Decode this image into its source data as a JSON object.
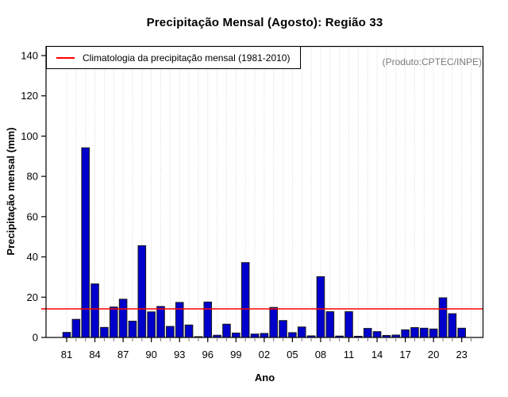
{
  "chart_data": {
    "type": "bar",
    "title": "Precipitação Mensal (Agosto): Região 33",
    "xlabel": "Ano",
    "ylabel": "Precipitação mensal (mm)",
    "watermark": "(Produto:CPTEC/INPE)",
    "ylim": [
      0,
      140
    ],
    "yticks": [
      0,
      20,
      40,
      60,
      80,
      100,
      120,
      140
    ],
    "xtick_labels": [
      "81",
      "84",
      "87",
      "90",
      "93",
      "96",
      "99",
      "02",
      "05",
      "08",
      "11",
      "14",
      "17",
      "20",
      "23"
    ],
    "xtick_step_years": 3,
    "grid": "vertical-dotted",
    "legend_position": "top-left",
    "bar_color": "#0000CD",
    "bar_border_color": "#1a1a1a",
    "grid_color": "#cfcfcf",
    "years": [
      1981,
      1982,
      1983,
      1984,
      1985,
      1986,
      1987,
      1988,
      1989,
      1990,
      1991,
      1992,
      1993,
      1994,
      1995,
      1996,
      1997,
      1998,
      1999,
      2000,
      2001,
      2002,
      2003,
      2004,
      2005,
      2006,
      2007,
      2008,
      2009,
      2010,
      2011,
      2012,
      2013,
      2014,
      2015,
      2016,
      2017,
      2018,
      2019,
      2020,
      2021,
      2022,
      2023
    ],
    "values": [
      2.5,
      9.0,
      94.2,
      26.6,
      5.0,
      15.1,
      19.0,
      8.1,
      45.6,
      12.7,
      15.4,
      5.5,
      17.4,
      6.2,
      0.4,
      17.6,
      1.1,
      6.6,
      2.2,
      37.2,
      1.7,
      2.0,
      14.9,
      8.4,
      2.4,
      5.2,
      0.8,
      30.2,
      12.8,
      0.7,
      12.8,
      0.6,
      4.5,
      2.9,
      1.0,
      1.2,
      3.8,
      4.9,
      4.6,
      4.2,
      19.7,
      11.8,
      4.6
    ],
    "climatology": {
      "label": "Climatologia da precipitação mensal (1981-2010)",
      "value": 14.2,
      "color": "#ff0000"
    }
  }
}
